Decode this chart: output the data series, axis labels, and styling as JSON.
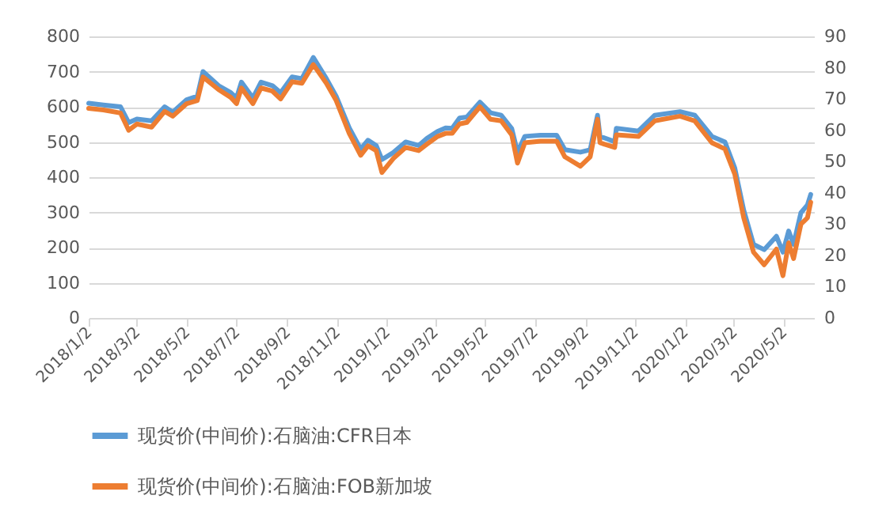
{
  "chart_data": {
    "type": "line",
    "x": [
      "2018-01-02",
      "2018-01-20",
      "2018-02-10",
      "2018-02-20",
      "2018-03-02",
      "2018-03-20",
      "2018-04-05",
      "2018-04-15",
      "2018-05-02",
      "2018-05-15",
      "2018-05-22",
      "2018-06-10",
      "2018-06-25",
      "2018-07-02",
      "2018-07-08",
      "2018-07-22",
      "2018-08-01",
      "2018-08-15",
      "2018-08-25",
      "2018-09-08",
      "2018-09-20",
      "2018-10-04",
      "2018-10-20",
      "2018-11-01",
      "2018-11-17",
      "2018-12-01",
      "2018-12-10",
      "2018-12-20",
      "2018-12-27",
      "2019-01-10",
      "2019-01-25",
      "2019-02-10",
      "2019-02-20",
      "2019-03-05",
      "2019-03-15",
      "2019-03-23",
      "2019-04-01",
      "2019-04-10",
      "2019-04-26",
      "2019-05-09",
      "2019-05-22",
      "2019-06-04",
      "2019-06-11",
      "2019-06-20",
      "2019-07-09",
      "2019-07-29",
      "2019-08-08",
      "2019-08-27",
      "2019-09-08",
      "2019-09-17",
      "2019-09-20",
      "2019-10-08",
      "2019-10-10",
      "2019-11-06",
      "2019-11-26",
      "2019-12-27",
      "2020-01-14",
      "2020-02-04",
      "2020-02-20",
      "2020-03-03",
      "2020-03-14",
      "2020-03-26",
      "2020-04-08",
      "2020-04-23",
      "2020-05-01",
      "2020-05-08",
      "2020-05-14",
      "2020-05-23",
      "2020-05-31",
      "2020-06-04"
    ],
    "series": [
      {
        "name": "现货价(中间价):石脑油:CFR日本",
        "color": "#5b9bd5",
        "values": [
          610,
          605,
          600,
          555,
          565,
          560,
          600,
          585,
          620,
          630,
          700,
          660,
          640,
          625,
          670,
          625,
          670,
          660,
          640,
          685,
          680,
          740,
          680,
          630,
          540,
          480,
          505,
          490,
          450,
          470,
          500,
          490,
          510,
          530,
          540,
          539,
          568,
          571,
          613,
          583,
          576,
          538,
          471,
          516,
          519,
          519,
          478,
          471,
          478,
          576,
          516,
          501,
          539,
          531,
          576,
          586,
          576,
          516,
          500,
          426,
          306,
          209,
          194,
          232,
          187,
          247,
          209,
          299,
          321,
          351
        ]
      },
      {
        "name": "现货价(中间价):石脑油:FOB新加坡",
        "color": "#ed7d31",
        "axis": "y2",
        "values": [
          67,
          66.5,
          65.5,
          60,
          62,
          61,
          66,
          64.5,
          68.5,
          69.5,
          77,
          73,
          70.5,
          68.5,
          73.5,
          68.5,
          73.5,
          72.5,
          70,
          75.5,
          75,
          81,
          75,
          69.5,
          59,
          52,
          55,
          53.5,
          46.5,
          51,
          54.5,
          53.5,
          55.5,
          58,
          59,
          59,
          62,
          62.5,
          67.5,
          63.5,
          63,
          58.5,
          49.5,
          56,
          56.5,
          56.5,
          51.5,
          48.5,
          51.5,
          63.5,
          56,
          54.5,
          58.5,
          58,
          63,
          64.5,
          63,
          56,
          54,
          46,
          32,
          21,
          17,
          22,
          13.5,
          24,
          19,
          30,
          32,
          37
        ]
      }
    ],
    "xlim": [
      "2018-01-02",
      "2020-06-08"
    ],
    "xticks": [
      {
        "value": "2018-01-02",
        "label": "2018/1/2"
      },
      {
        "value": "2018-03-02",
        "label": "2018/3/2"
      },
      {
        "value": "2018-05-02",
        "label": "2018/5/2"
      },
      {
        "value": "2018-07-02",
        "label": "2018/7/2"
      },
      {
        "value": "2018-09-02",
        "label": "2018/9/2"
      },
      {
        "value": "2018-11-02",
        "label": "2018/11/2"
      },
      {
        "value": "2019-01-02",
        "label": "2019/1/2"
      },
      {
        "value": "2019-03-02",
        "label": "2019/3/2"
      },
      {
        "value": "2019-05-02",
        "label": "2019/5/2"
      },
      {
        "value": "2019-07-02",
        "label": "2019/7/2"
      },
      {
        "value": "2019-09-02",
        "label": "2019/9/2"
      },
      {
        "value": "2019-11-02",
        "label": "2019/11/2"
      },
      {
        "value": "2020-01-02",
        "label": "2020/1/2"
      },
      {
        "value": "2020-03-02",
        "label": "2020/3/2"
      },
      {
        "value": "2020-05-02",
        "label": "2020/5/2"
      }
    ],
    "ylim": [
      0,
      800
    ],
    "yticks": [
      0,
      100,
      200,
      300,
      400,
      500,
      600,
      700,
      800
    ],
    "y2lim": [
      0,
      90
    ],
    "y2ticks": [
      0,
      10,
      20,
      30,
      40,
      50,
      60,
      70,
      80,
      90
    ],
    "grid": "y",
    "legend": "bottom",
    "marker": "none",
    "line_style": "solid"
  }
}
